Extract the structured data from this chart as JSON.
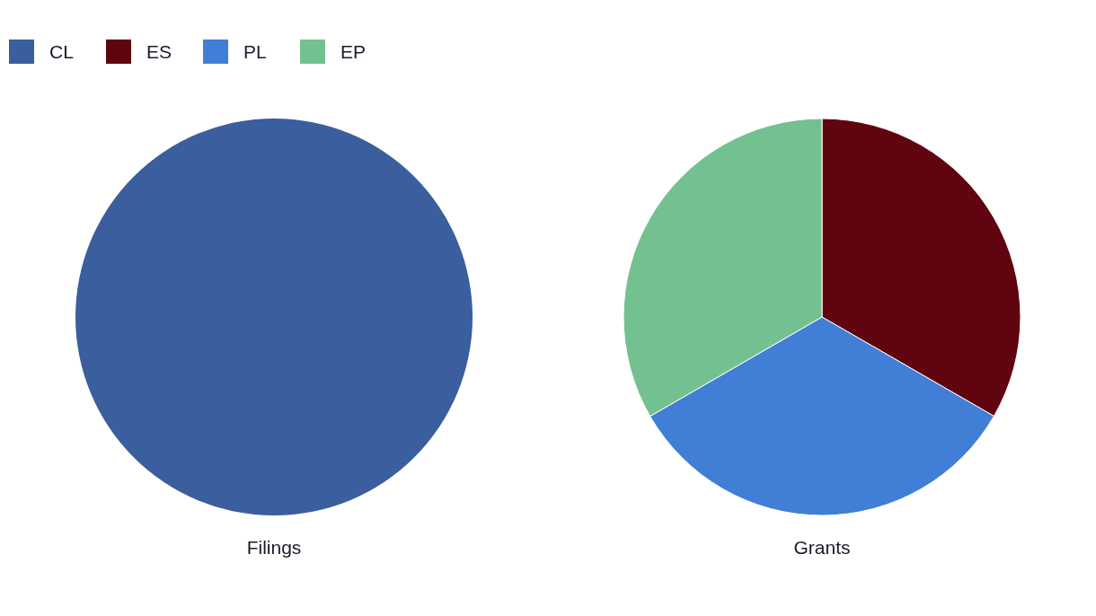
{
  "chart_data": [
    {
      "type": "pie",
      "title": "Filings",
      "categories": [
        "CL"
      ],
      "values": [
        100
      ],
      "colors": [
        "#3a5e9e"
      ],
      "legend": "top left"
    },
    {
      "type": "pie",
      "title": "Grants",
      "categories": [
        "ES",
        "PL",
        "EP"
      ],
      "values": [
        33.33,
        33.33,
        33.34
      ],
      "colors": [
        "#60040f",
        "#417ed6",
        "#73c191"
      ],
      "legend": "top left"
    }
  ]
}
